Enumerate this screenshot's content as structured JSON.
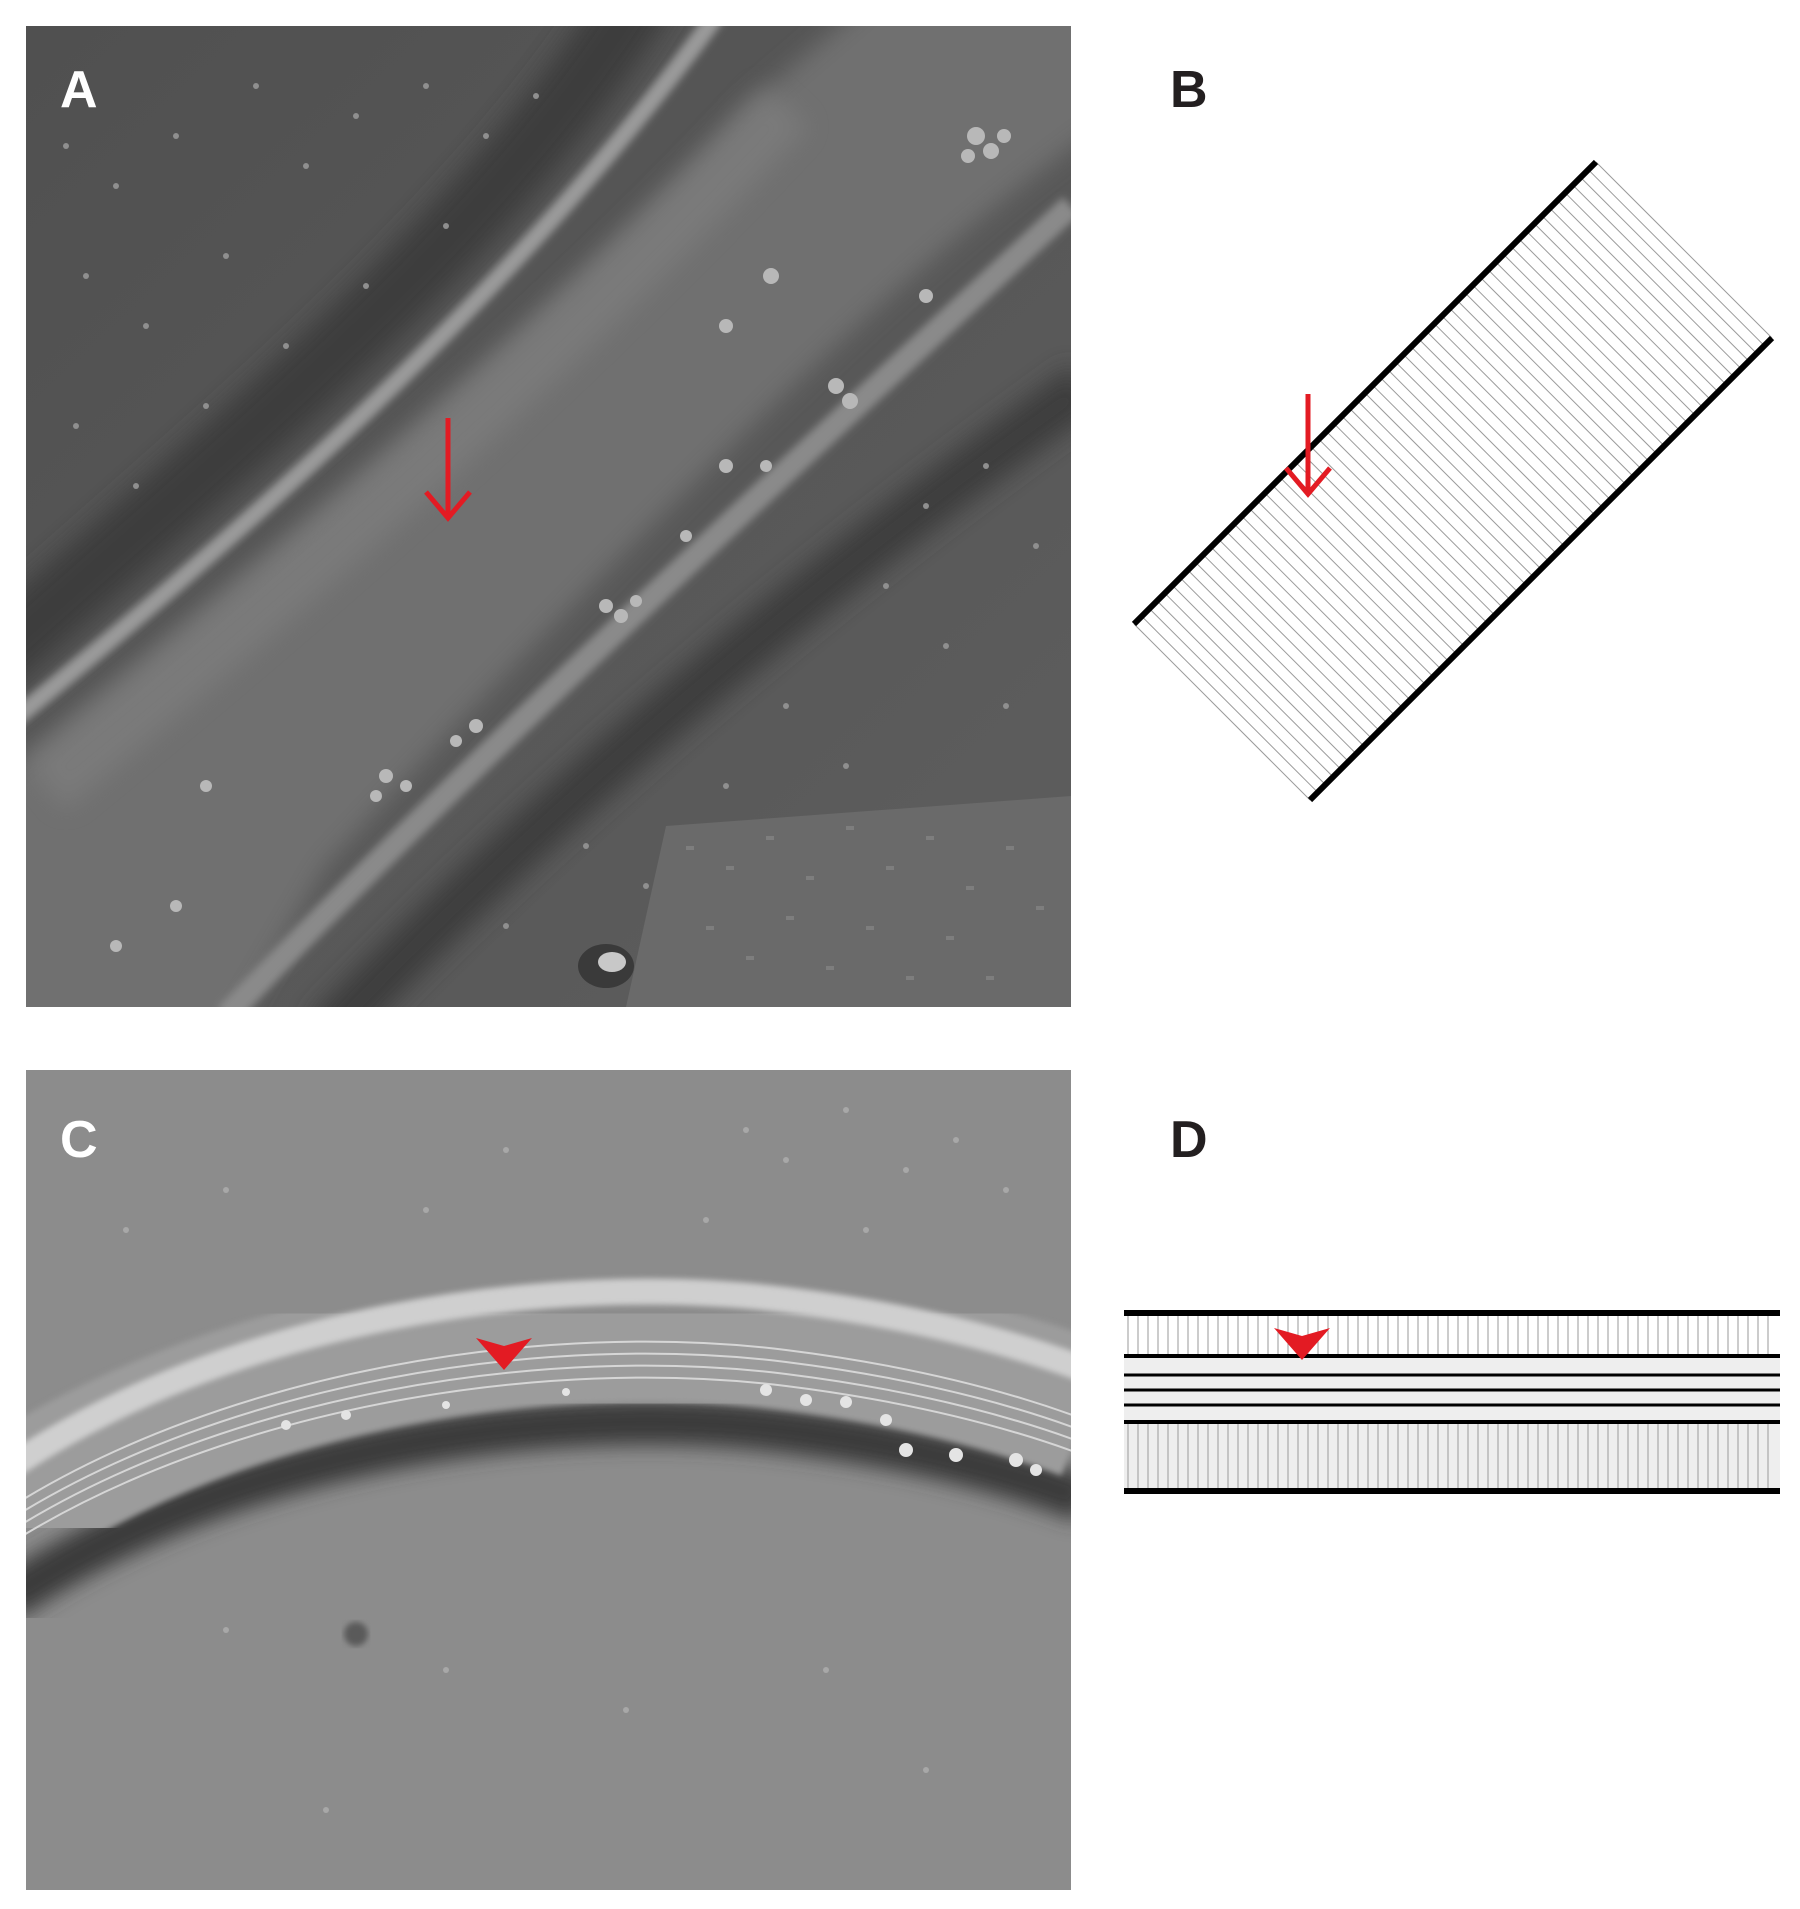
{
  "figure": {
    "panels": [
      {
        "label": "A",
        "kind": "micrograph",
        "marker": "arrow"
      },
      {
        "label": "B",
        "kind": "schematic",
        "marker": "arrow"
      },
      {
        "label": "C",
        "kind": "micrograph",
        "marker": "arrowhead"
      },
      {
        "label": "D",
        "kind": "schematic",
        "marker": "arrowhead"
      }
    ],
    "colors": {
      "marker": "#e31b23",
      "schematic_line": "#000000",
      "striation": "#9a9a9a",
      "micrograph_a_bg": "#5a5a5a",
      "micrograph_c_bg": "#8c8c8c"
    }
  }
}
